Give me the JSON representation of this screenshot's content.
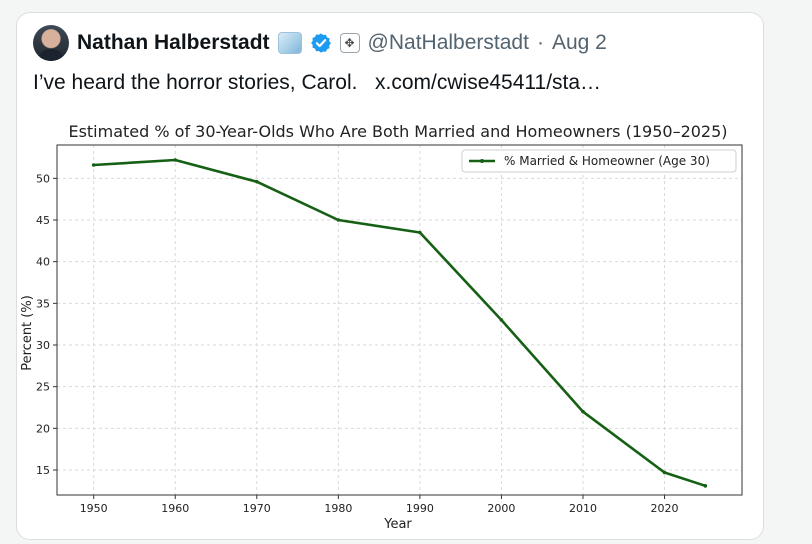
{
  "tweet": {
    "author_name": "Nathan Halberstadt",
    "emoji_icon": "ice-cube-emoji-icon",
    "verified_icon": "verified-badge-icon",
    "affiliate_icon": "affiliate-badge-icon",
    "handle": "@NatHalberstadt",
    "separator": "·",
    "date": "Aug 2",
    "text": "I’ve heard the horror stories, Carol.",
    "link_text": "x.com/cwise45411/sta…"
  },
  "colors": {
    "line": "#156015",
    "verified": "#1d9bf0"
  },
  "chart_data": {
    "type": "line",
    "title": "Estimated % of 30-Year-Olds Who Are Both Married and Homeowners (1950–2025)",
    "xlabel": "Year",
    "ylabel": "Percent (%)",
    "x": [
      1950,
      1960,
      1970,
      1980,
      1990,
      2000,
      2010,
      2020,
      2025
    ],
    "series": [
      {
        "name": "% Married & Homeowner (Age 30)",
        "values": [
          51.6,
          52.2,
          49.6,
          45.0,
          43.5,
          33.0,
          22.0,
          14.7,
          13.1
        ]
      }
    ],
    "xticks": [
      "1950",
      "1960",
      "1970",
      "1980",
      "1990",
      "2000",
      "2010",
      "2020"
    ],
    "yticks": [
      "15",
      "20",
      "25",
      "30",
      "35",
      "40",
      "45",
      "50"
    ],
    "xlim": [
      1945.5,
      2029.5
    ],
    "ylim": [
      12.0,
      54.0
    ],
    "grid": true,
    "legend_position": "top-right"
  }
}
